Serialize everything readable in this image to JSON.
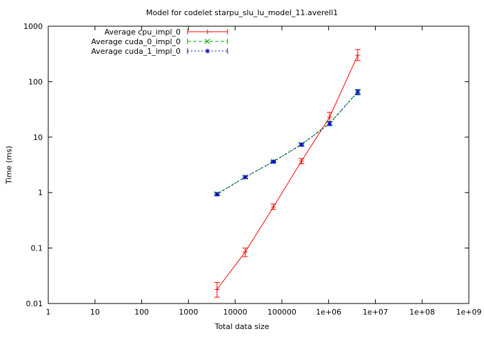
{
  "chart_data": {
    "type": "line",
    "title": "Model for codelet starpu_slu_lu_model_11.averell1",
    "xlabel": "Total data size",
    "ylabel": "Time (ms)",
    "x_scale": "log",
    "y_scale": "log",
    "xlim": [
      1,
      1000000000
    ],
    "ylim": [
      0.01,
      1000
    ],
    "grid": false,
    "legend_position": "top-left",
    "x_ticks": [
      {
        "v": 1,
        "label": "1"
      },
      {
        "v": 10,
        "label": "10"
      },
      {
        "v": 100,
        "label": "100"
      },
      {
        "v": 1000,
        "label": "1000"
      },
      {
        "v": 10000,
        "label": "10000"
      },
      {
        "v": 100000,
        "label": "100000"
      },
      {
        "v": 1000000,
        "label": "1e+06"
      },
      {
        "v": 10000000,
        "label": "1e+07"
      },
      {
        "v": 100000000,
        "label": "1e+08"
      },
      {
        "v": 1000000000,
        "label": "1e+09"
      }
    ],
    "y_ticks": [
      {
        "v": 0.01,
        "label": "0.01"
      },
      {
        "v": 0.1,
        "label": "0.1"
      },
      {
        "v": 1,
        "label": "1"
      },
      {
        "v": 10,
        "label": "10"
      },
      {
        "v": 100,
        "label": "100"
      },
      {
        "v": 1000,
        "label": "1000"
      }
    ],
    "series": [
      {
        "name": "Average cpu_impl_0",
        "color": "#ff0000",
        "dash": "solid",
        "marker": "plus",
        "x": [
          4096,
          16384,
          65536,
          262144,
          1048576,
          4194304
        ],
        "y": [
          0.018,
          0.085,
          0.55,
          3.7,
          23,
          300
        ],
        "ylow": [
          0.013,
          0.07,
          0.5,
          3.3,
          19,
          240
        ],
        "yhigh": [
          0.024,
          0.1,
          0.62,
          4.1,
          28,
          380
        ]
      },
      {
        "name": "Average cuda_0_impl_0",
        "color": "#00a000",
        "dash": "dashed",
        "marker": "x",
        "x": [
          4096,
          16384,
          65536,
          262144,
          1048576,
          4194304
        ],
        "y": [
          0.95,
          1.9,
          3.65,
          7.4,
          17.8,
          66
        ],
        "ylow": [
          0.9,
          1.82,
          3.5,
          7.0,
          16.5,
          60
        ],
        "yhigh": [
          1.0,
          2.0,
          3.8,
          7.8,
          19.2,
          72
        ]
      },
      {
        "name": "Average cuda_1_impl_0",
        "color": "#0000cc",
        "dash": "dotted",
        "marker": "asterisk",
        "x": [
          4096,
          16384,
          65536,
          262144,
          1048576,
          4194304
        ],
        "y": [
          0.93,
          1.9,
          3.6,
          7.3,
          17.5,
          65
        ],
        "ylow": [
          0.88,
          1.8,
          3.45,
          6.9,
          16.2,
          58
        ],
        "yhigh": [
          0.98,
          2.0,
          3.75,
          7.7,
          18.8,
          71
        ]
      }
    ]
  }
}
